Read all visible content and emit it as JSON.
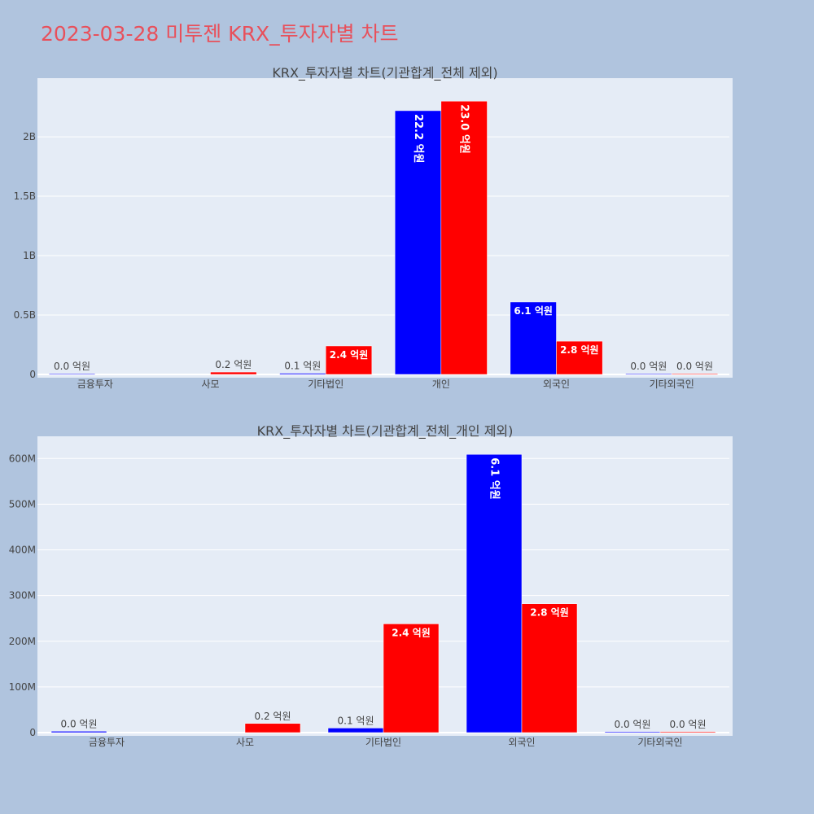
{
  "page_title": "2023-03-28 미투젠 KRX_투자자별 차트",
  "colors": {
    "background": "#b0c4de",
    "plot_bg": "#e5ecf6",
    "title": "#e8505b",
    "buy": "#0000ff",
    "sell": "#ff0000",
    "text": "#444444"
  },
  "chart_data": [
    {
      "type": "bar",
      "title": "KRX_투자자별 차트(기관합계_전체 제외)",
      "categories": [
        "금융투자",
        "사모",
        "기타법인",
        "개인",
        "외국인",
        "기타외국인"
      ],
      "series": [
        {
          "color": "#0000ff",
          "values": [
            4000000,
            null,
            10000000,
            2220000000,
            610000000,
            3000000
          ],
          "labels": [
            "0.0 억원",
            "",
            "0.1 억원",
            "22.2 억원",
            "6.1 억원",
            "0.0 억원"
          ]
        },
        {
          "color": "#ff0000",
          "values": [
            null,
            20000000,
            240000000,
            2300000000,
            280000000,
            2000000
          ],
          "labels": [
            "",
            "0.2 억원",
            "2.4 억원",
            "23.0 억원",
            "2.8 억원",
            "0.0 억원"
          ]
        }
      ],
      "ylim": [
        0,
        2480000000.0
      ],
      "yticks": [
        0,
        500000000,
        1000000000,
        1500000000,
        2000000000
      ],
      "ytick_labels": [
        "0",
        "0.5B",
        "1B",
        "1.5B",
        "2B"
      ],
      "grid": true
    },
    {
      "type": "bar",
      "title": "KRX_투자자별 차트(기관합계_전체_개인 제외)",
      "categories": [
        "금융투자",
        "사모",
        "기타법인",
        "외국인",
        "기타외국인"
      ],
      "series": [
        {
          "color": "#0000ff",
          "values": [
            3000000,
            null,
            10000000,
            609000000,
            2000000
          ],
          "labels": [
            "0.0 억원",
            "",
            "0.1 억원",
            "6.1 억원",
            "0.0 억원"
          ]
        },
        {
          "color": "#ff0000",
          "values": [
            null,
            20000000,
            238000000,
            282000000,
            2000000
          ],
          "labels": [
            "",
            "0.2 억원",
            "2.4 억원",
            "2.8 억원",
            "0.0 억원"
          ]
        }
      ],
      "ylim": [
        0,
        645000000
      ],
      "yticks": [
        0,
        100000000,
        200000000,
        300000000,
        400000000,
        500000000,
        600000000
      ],
      "ytick_labels": [
        "0",
        "100M",
        "200M",
        "300M",
        "400M",
        "500M",
        "600M"
      ],
      "grid": true
    }
  ]
}
